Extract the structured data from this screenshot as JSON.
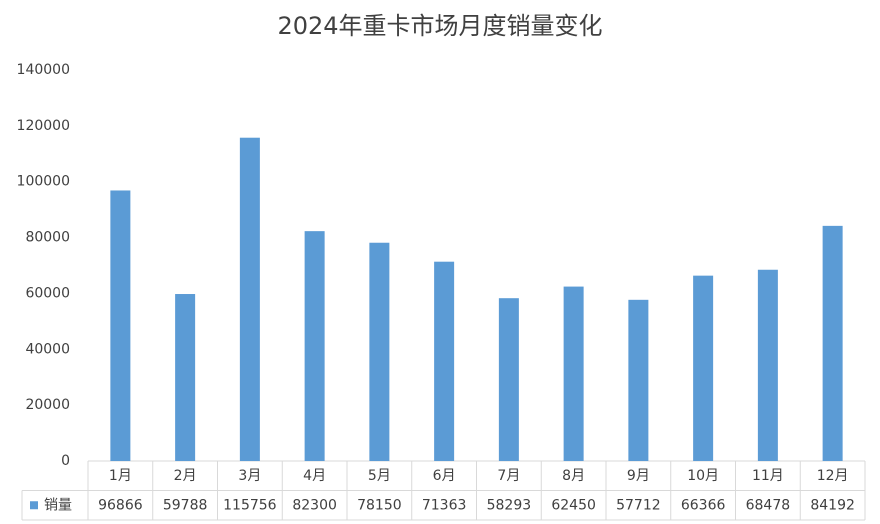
{
  "chart_data": {
    "type": "bar",
    "title": "2024年重卡市场月度销量变化",
    "categories": [
      "1月",
      "2月",
      "3月",
      "4月",
      "5月",
      "6月",
      "7月",
      "8月",
      "9月",
      "10月",
      "11月",
      "12月"
    ],
    "series": [
      {
        "name": "销量",
        "color": "#5b9bd5",
        "values": [
          96866,
          59788,
          115756,
          82300,
          78150,
          71363,
          58293,
          62450,
          57712,
          66366,
          68478,
          84192
        ]
      }
    ],
    "ylim": [
      0,
      140000
    ],
    "yticks": [
      0,
      20000,
      40000,
      60000,
      80000,
      100000,
      120000,
      140000
    ],
    "grid": false
  }
}
